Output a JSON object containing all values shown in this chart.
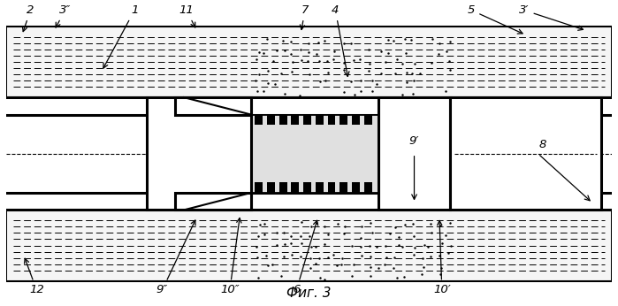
{
  "fig_width": 6.99,
  "fig_height": 3.46,
  "dpi": 100,
  "bg_color": "#ffffff",
  "title": "Фиг. 3",
  "title_fontsize": 11,
  "title_style": "italic"
}
